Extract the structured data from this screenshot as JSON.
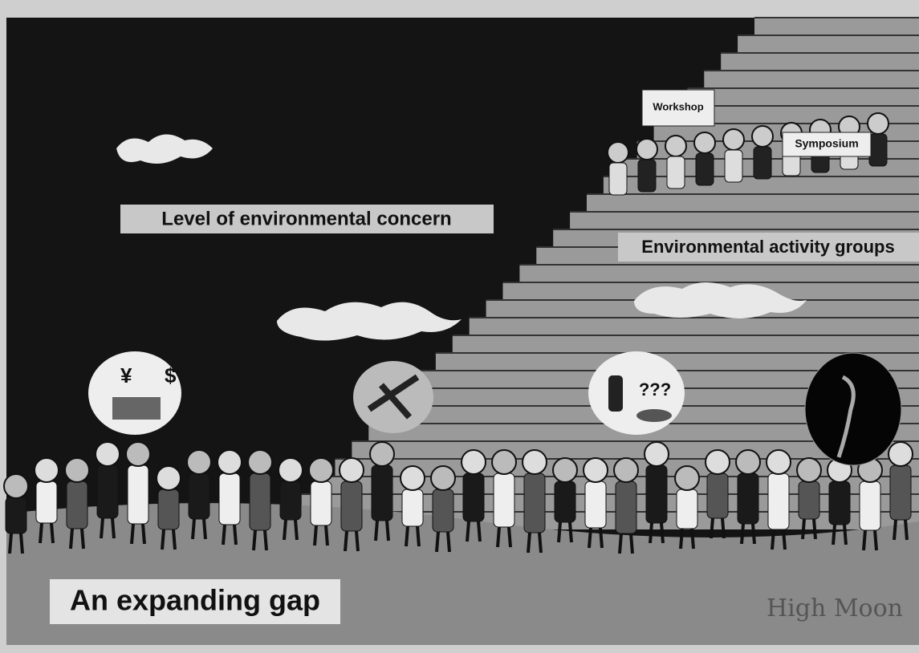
{
  "labels": {
    "concern": "Level of environmental concern",
    "groups": "Environmental activity groups",
    "gap": "An expanding gap",
    "signature": "High Moon"
  },
  "signs": {
    "workshop": "Workshop",
    "symposium": "Symposium"
  },
  "bubbles": {
    "yen": "¥",
    "dollar": "$",
    "question": "???"
  }
}
